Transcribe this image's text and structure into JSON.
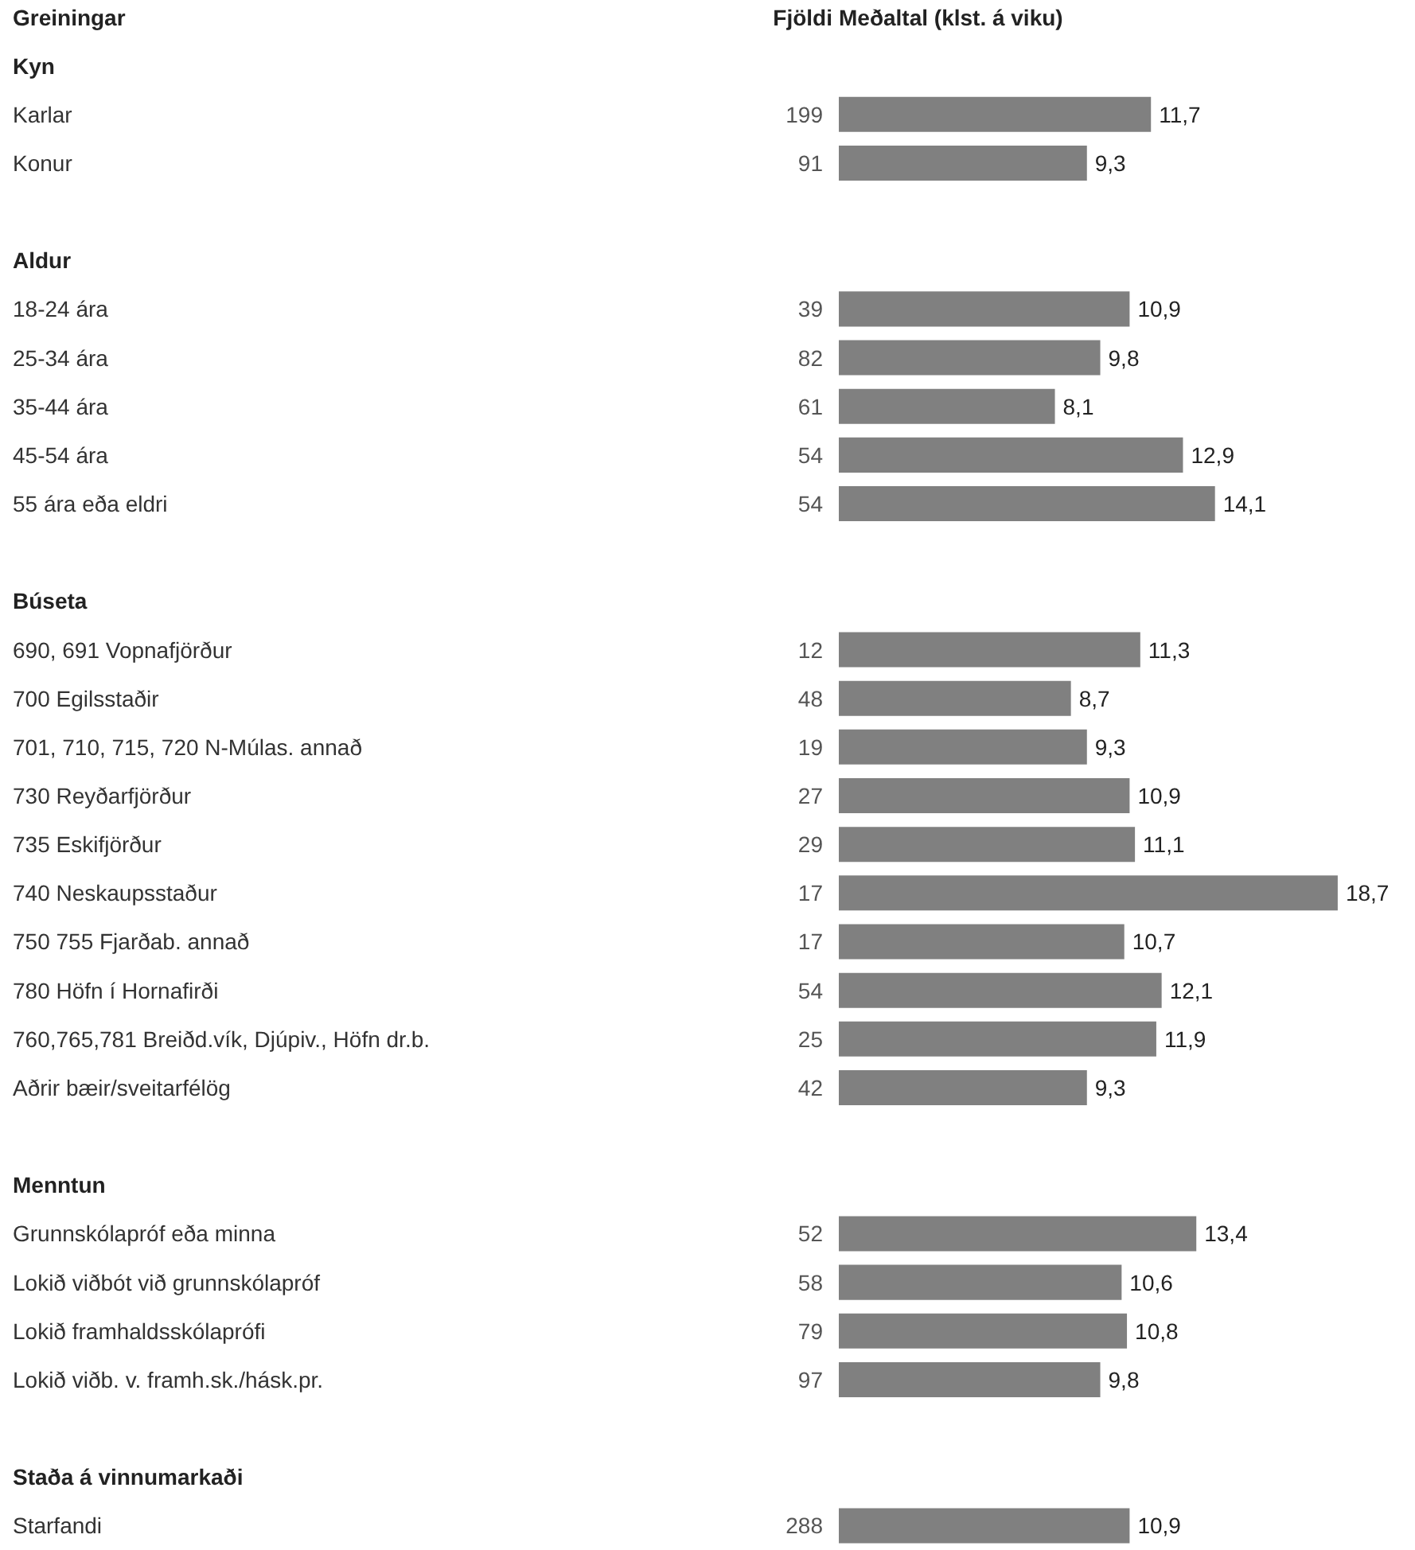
{
  "chart_data": {
    "type": "bar",
    "orientation": "horizontal",
    "ylabel": "Greiningar",
    "xlabel": "Meðaltal (klst. á viku)",
    "categories": [
      "Kyn",
      "Karlar",
      "Konur",
      null,
      "Aldur",
      "18-24 ára",
      "25-34 ára",
      "35-44 ára",
      "45-54 ára",
      "55 ára eða eldri",
      null,
      "Búseta",
      "690, 691 Vopnafjörður",
      "700 Egilsstaðir",
      "701, 710, 715, 720 N-Múlas. annað",
      "730 Reyðarfjörður",
      "735 Eskifjörður",
      "740 Neskaupsstaður",
      "750 755 Fjarðab. annað",
      "780 Höfn í Hornafirði",
      "760,765,781 Breiðd.vík, Djúpiv., Höfn dr.b.",
      "Aðrir bæir/sveitarfélög",
      null,
      "Menntun",
      "Grunnskólapróf eða minna",
      "Lokið viðbót við grunnskólapróf",
      "Lokið framhaldsskólaprófi",
      "Lokið viðb. v. framh.sk./hásk.pr.",
      null,
      "Staða á vinnumarkaði",
      "Starfandi"
    ],
    "values": [
      null,
      11.7,
      9.3,
      null,
      null,
      10.9,
      9.8,
      8.1,
      12.9,
      14.1,
      null,
      null,
      11.3,
      8.7,
      9.3,
      10.9,
      11.1,
      18.7,
      10.7,
      12.1,
      11.9,
      9.3,
      null,
      null,
      13.4,
      10.6,
      10.8,
      9.8,
      null,
      null,
      10.9
    ],
    "value_labels": [
      null,
      "11,7",
      "9,3",
      null,
      null,
      "10,9",
      "9,8",
      "8,1",
      "12,9",
      "14,1",
      null,
      null,
      "11,3",
      "8,7",
      "9,3",
      "10,9",
      "11,1",
      "18,7",
      "10,7",
      "12,1",
      "11,9",
      "9,3",
      null,
      null,
      "13,4",
      "10,6",
      "10,8",
      "9,8",
      null,
      null,
      "10,9"
    ],
    "color": "#808080",
    "annotations": [
      "Fjöldi",
      "199",
      "91",
      "39",
      "82",
      "61",
      "54",
      "54",
      "12",
      "48",
      "19",
      "27",
      "29",
      "17",
      "17",
      "54",
      "25",
      "42",
      "52",
      "58",
      "79",
      "97",
      "288"
    ]
  }
}
